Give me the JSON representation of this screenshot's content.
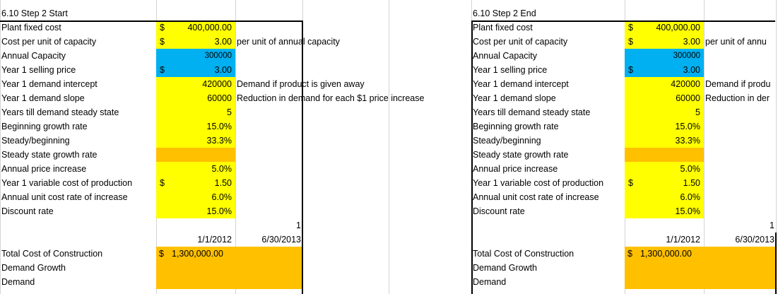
{
  "blocks": [
    {
      "title": "6.10 Step 2 Start",
      "rows": [
        {
          "label": "Plant fixed cost",
          "cur": "$",
          "value": "400,000.00",
          "note": "",
          "fill": "yel"
        },
        {
          "label": "Cost per unit of capacity",
          "cur": "$",
          "value": "3.00",
          "note": "per unit of annual capacity",
          "fill": "yel"
        },
        {
          "label": "Annual Capacity",
          "cur": "",
          "value": "300000",
          "note": "",
          "fill": "blu"
        },
        {
          "label": "Year 1 selling price",
          "cur": "$",
          "value": "3.00",
          "note": "",
          "fill": "blu"
        },
        {
          "label": "Year 1 demand intercept",
          "cur": "",
          "value": "420000",
          "note": "Demand if product is given away",
          "fill": "yel"
        },
        {
          "label": "Year 1 demand slope",
          "cur": "",
          "value": "60000",
          "note": "Reduction in demand for each $1 price increase",
          "fill": "yel"
        },
        {
          "label": "Years till demand steady state",
          "cur": "",
          "value": "5",
          "note": "",
          "fill": "yel"
        },
        {
          "label": "Beginning growth rate",
          "cur": "",
          "value": "15.0%",
          "note": "",
          "fill": "yel"
        },
        {
          "label": "Steady/beginning",
          "cur": "",
          "value": "33.3%",
          "note": "",
          "fill": "yel"
        },
        {
          "label": "Steady state growth rate",
          "cur": "",
          "value": "",
          "note": "",
          "fill": "org"
        },
        {
          "label": "Annual price increase",
          "cur": "",
          "value": "5.0%",
          "note": "",
          "fill": "yel"
        },
        {
          "label": "Year 1 variable cost of production",
          "cur": "$",
          "value": "1.50",
          "note": "",
          "fill": "yel"
        },
        {
          "label": "Annual unit cost rate of increase",
          "cur": "",
          "value": "6.0%",
          "note": "",
          "fill": "yel"
        },
        {
          "label": "Discount rate",
          "cur": "",
          "value": "15.0%",
          "note": "",
          "fill": "yel"
        }
      ],
      "period_number": "1",
      "date_start": "1/1/2012",
      "date_end": "6/30/2013",
      "construction_label": "Total Cost of Construction",
      "construction_cur": "$",
      "construction_value": "1,300,000.00",
      "demand_growth_label": "Demand Growth",
      "demand_label": "Demand"
    },
    {
      "title": "6.10 Step 2 End",
      "rows": [
        {
          "label": "Plant fixed cost",
          "cur": "$",
          "value": "400,000.00",
          "note": "",
          "fill": "yel"
        },
        {
          "label": "Cost per unit of capacity",
          "cur": "$",
          "value": "3.00",
          "note": "per unit of annu",
          "fill": "yel"
        },
        {
          "label": "Annual Capacity",
          "cur": "",
          "value": "300000",
          "note": "",
          "fill": "blu"
        },
        {
          "label": "Year 1 selling price",
          "cur": "$",
          "value": "3.00",
          "note": "",
          "fill": "blu"
        },
        {
          "label": "Year 1 demand intercept",
          "cur": "",
          "value": "420000",
          "note": "Demand if produ",
          "fill": "yel"
        },
        {
          "label": "Year 1 demand slope",
          "cur": "",
          "value": "60000",
          "note": "Reduction in der",
          "fill": "yel"
        },
        {
          "label": "Years till demand steady state",
          "cur": "",
          "value": "5",
          "note": "",
          "fill": "yel"
        },
        {
          "label": "Beginning growth rate",
          "cur": "",
          "value": "15.0%",
          "note": "",
          "fill": "yel"
        },
        {
          "label": "Steady/beginning",
          "cur": "",
          "value": "33.3%",
          "note": "",
          "fill": "yel"
        },
        {
          "label": "Steady state growth rate",
          "cur": "",
          "value": "",
          "note": "",
          "fill": "org"
        },
        {
          "label": "Annual price increase",
          "cur": "",
          "value": "5.0%",
          "note": "",
          "fill": "yel"
        },
        {
          "label": "Year 1 variable cost of production",
          "cur": "$",
          "value": "1.50",
          "note": "",
          "fill": "yel"
        },
        {
          "label": "Annual unit cost rate of increase",
          "cur": "",
          "value": "6.0%",
          "note": "",
          "fill": "yel"
        },
        {
          "label": "Discount rate",
          "cur": "",
          "value": "15.0%",
          "note": "",
          "fill": "yel"
        }
      ],
      "period_number": "1",
      "date_start": "1/1/2012",
      "date_end": "6/30/2013",
      "construction_label": "Total Cost of Construction",
      "construction_cur": "$",
      "construction_value": "1,300,000.00",
      "demand_growth_label": "Demand Growth",
      "demand_label": "Demand"
    }
  ],
  "colors": {
    "input_fill": "#ffff00",
    "key_fill": "#00b0f0",
    "output_fill": "#ffc000"
  }
}
